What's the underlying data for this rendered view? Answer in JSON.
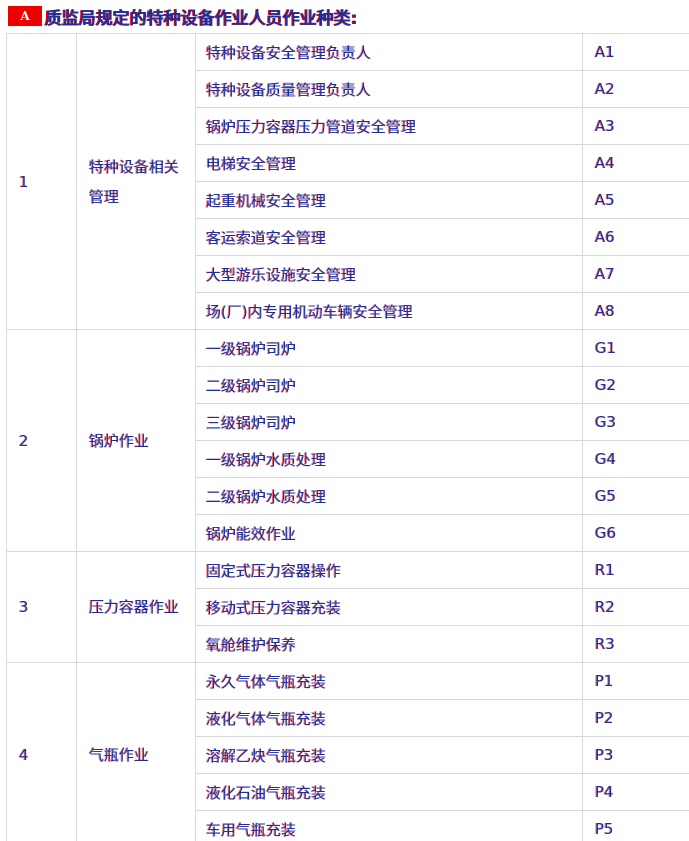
{
  "header": {
    "badge": "A",
    "title": "质监局规定的特种设备作业人员作业种类:"
  },
  "colors": {
    "badge_bg": "#ee0000",
    "badge_text": "#ffffff",
    "text_navy": "#1b2f9e",
    "accent_red": "#e60000",
    "border": "#d9d9d9"
  },
  "table": {
    "groups": [
      {
        "index": "1",
        "category": "特种设备相关管理",
        "items": [
          {
            "name": "特种设备安全管理负责人",
            "code": "A1"
          },
          {
            "name": "特种设备质量管理负责人",
            "code": "A2"
          },
          {
            "name": "锅炉压力容器压力管道安全管理",
            "code": "A3"
          },
          {
            "name": "电梯安全管理",
            "code": "A4"
          },
          {
            "name": "起重机械安全管理",
            "code": "A5"
          },
          {
            "name": "客运索道安全管理",
            "code": "A6"
          },
          {
            "name": "大型游乐设施安全管理",
            "code": "A7"
          },
          {
            "name": "场(厂)内专用机动车辆安全管理",
            "code": "A8"
          }
        ]
      },
      {
        "index": "2",
        "category": "锅炉作业",
        "items": [
          {
            "name": "一级锅炉司炉",
            "code": "G1"
          },
          {
            "name": "二级锅炉司炉",
            "code": "G2"
          },
          {
            "name": "三级锅炉司炉",
            "code": "G3"
          },
          {
            "name": "一级锅炉水质处理",
            "code": "G4"
          },
          {
            "name": "二级锅炉水质处理",
            "code": "G5"
          },
          {
            "name": "锅炉能效作业",
            "code": "G6"
          }
        ]
      },
      {
        "index": "3",
        "category": "压力容器作业",
        "items": [
          {
            "name": "固定式压力容器操作",
            "code": "R1"
          },
          {
            "name": "移动式压力容器充装",
            "code": "R2"
          },
          {
            "name": "氧舱维护保养",
            "code": "R3"
          }
        ]
      },
      {
        "index": "4",
        "category": "气瓶作业",
        "items": [
          {
            "name": "永久气体气瓶充装",
            "code": "P1"
          },
          {
            "name": "液化气体气瓶充装",
            "code": "P2"
          },
          {
            "name": "溶解乙炔气瓶充装",
            "code": "P3"
          },
          {
            "name": "液化石油气瓶充装",
            "code": "P4"
          },
          {
            "name": "车用气瓶充装",
            "code": "P5"
          }
        ]
      }
    ]
  }
}
